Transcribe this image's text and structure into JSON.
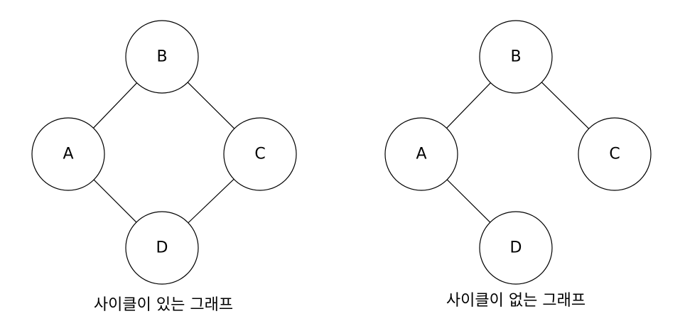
{
  "graphs": [
    {
      "caption": "사이클이 있는 그래프",
      "nodes": [
        {
          "id": "A",
          "label": "A"
        },
        {
          "id": "B",
          "label": "B"
        },
        {
          "id": "C",
          "label": "C"
        },
        {
          "id": "D",
          "label": "D"
        }
      ],
      "edges": [
        [
          "B",
          "A"
        ],
        [
          "B",
          "C"
        ],
        [
          "A",
          "D"
        ],
        [
          "C",
          "D"
        ]
      ]
    },
    {
      "caption": "사이클이 없는 그래프",
      "nodes": [
        {
          "id": "A",
          "label": "A"
        },
        {
          "id": "B",
          "label": "B"
        },
        {
          "id": "C",
          "label": "C"
        },
        {
          "id": "D",
          "label": "D"
        }
      ],
      "edges": [
        [
          "B",
          "A"
        ],
        [
          "B",
          "C"
        ],
        [
          "A",
          "D"
        ]
      ]
    }
  ]
}
